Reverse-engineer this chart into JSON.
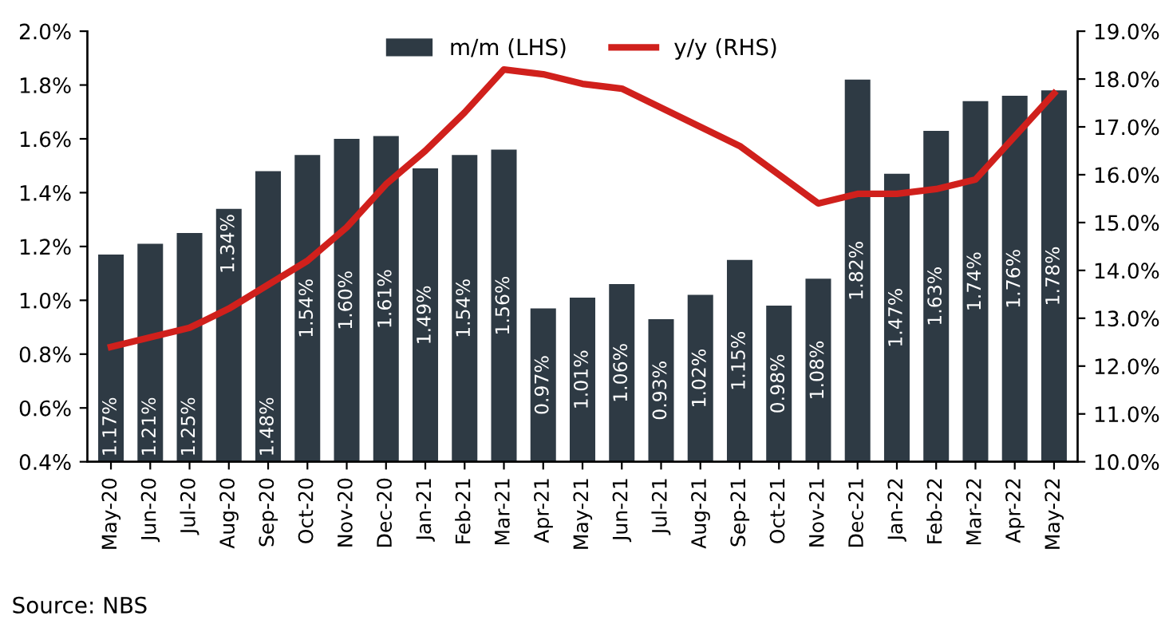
{
  "chart_data": {
    "type": "bar",
    "categories": [
      "May-20",
      "Jun-20",
      "Jul-20",
      "Aug-20",
      "Sep-20",
      "Oct-20",
      "Nov-20",
      "Dec-20",
      "Jan-21",
      "Feb-21",
      "Mar-21",
      "Apr-21",
      "May-21",
      "Jun-21",
      "Jul-21",
      "Aug-21",
      "Sep-21",
      "Oct-21",
      "Nov-21",
      "Dec-21",
      "Jan-22",
      "Feb-22",
      "Mar-22",
      "Apr-22",
      "May-22"
    ],
    "series": [
      {
        "name": "m/m (LHS)",
        "color": "#2e3a44",
        "values": [
          1.17,
          1.21,
          1.25,
          1.34,
          1.48,
          1.54,
          1.6,
          1.61,
          1.49,
          1.54,
          1.56,
          0.97,
          1.01,
          1.06,
          0.93,
          1.02,
          1.15,
          0.98,
          1.08,
          1.82,
          1.47,
          1.63,
          1.74,
          1.76,
          1.78
        ],
        "value_labels": [
          "1.17%",
          "1.21%",
          "1.25%",
          "1.34%",
          "1.48%",
          "1.54%",
          "1.60%",
          "1.61%",
          "1.49%",
          "1.54%",
          "1.56%",
          "0.97%",
          "1.01%",
          "1.06%",
          "0.93%",
          "1.02%",
          "1.15%",
          "0.98%",
          "1.08%",
          "1.82%",
          "1.47%",
          "1.63%",
          "1.74%",
          "1.76%",
          "1.78%"
        ]
      },
      {
        "name": "y/y (RHS)",
        "type": "line",
        "axis": "y2",
        "color": "#d0201c",
        "values": [
          12.4,
          12.6,
          12.8,
          13.2,
          13.7,
          14.2,
          14.9,
          15.8,
          16.5,
          17.3,
          18.2,
          18.1,
          17.9,
          17.8,
          17.4,
          17.0,
          16.6,
          16.0,
          15.4,
          15.6,
          15.6,
          15.7,
          15.9,
          16.8,
          17.7
        ]
      }
    ],
    "ylim": [
      0.4,
      2.0
    ],
    "yticks": [
      {
        "value": 0.4,
        "label": "0.4%"
      },
      {
        "value": 0.6,
        "label": "0.6%"
      },
      {
        "value": 0.8,
        "label": "0.8%"
      },
      {
        "value": 1.0,
        "label": "1.0%"
      },
      {
        "value": 1.2,
        "label": "1.2%"
      },
      {
        "value": 1.4,
        "label": "1.4%"
      },
      {
        "value": 1.6,
        "label": "1.6%"
      },
      {
        "value": 1.8,
        "label": "1.8%"
      },
      {
        "value": 2.0,
        "label": "2.0%"
      }
    ],
    "y2lim": [
      10,
      19
    ],
    "y2ticks": [
      {
        "value": 10,
        "label": "10.0%"
      },
      {
        "value": 11,
        "label": "11.0%"
      },
      {
        "value": 12,
        "label": "12.0%"
      },
      {
        "value": 13,
        "label": "13.0%"
      },
      {
        "value": 14,
        "label": "14.0%"
      },
      {
        "value": 15,
        "label": "15.0%"
      },
      {
        "value": 16,
        "label": "16.0%"
      },
      {
        "value": 17,
        "label": "17.0%"
      },
      {
        "value": 18,
        "label": "18.0%"
      },
      {
        "value": 19,
        "label": "19.0%"
      }
    ],
    "legend": "top",
    "grid": false,
    "annotations": [
      "Source: NBS"
    ]
  }
}
